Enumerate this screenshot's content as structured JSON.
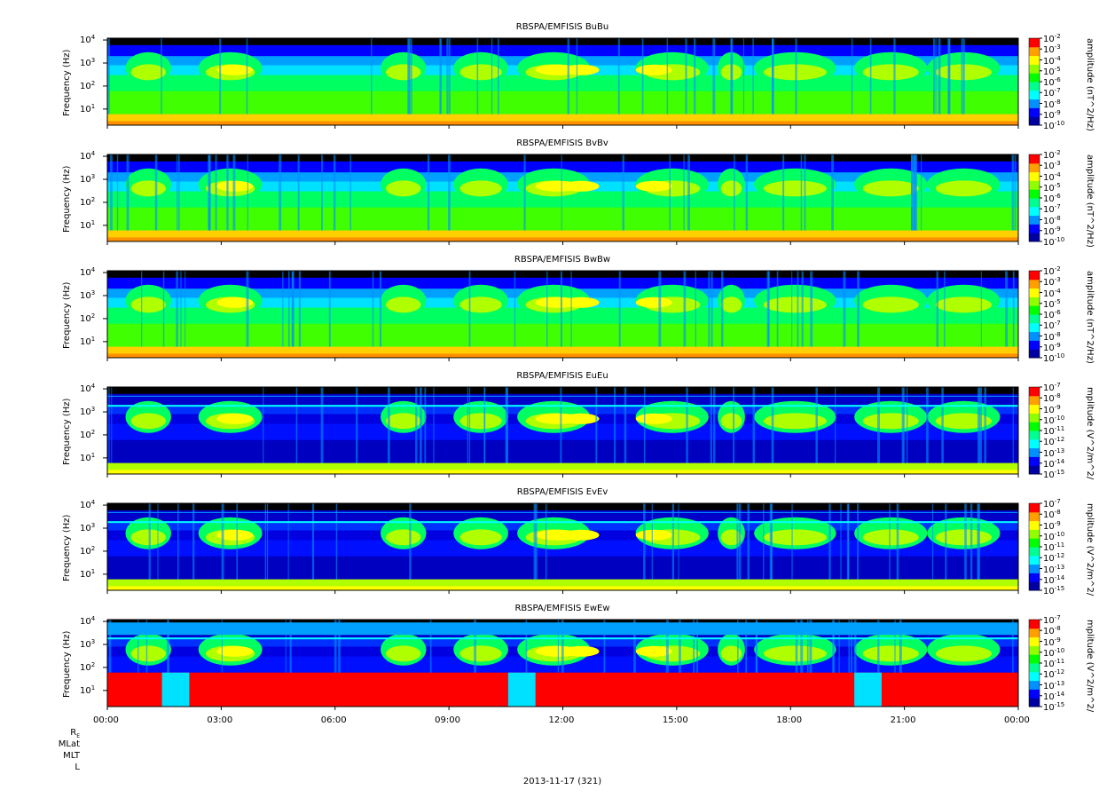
{
  "date_label": "2013-11-17 (321)",
  "row_labels": [
    "R",
    "E",
    "MLat",
    "MLT",
    "L"
  ],
  "x_ticks": [
    "00:00",
    "03:00",
    "06:00",
    "09:00",
    "12:00",
    "15:00",
    "18:00",
    "21:00",
    "00:00"
  ],
  "y_ticks": {
    "base": "10",
    "exps": [
      "1",
      "2",
      "3",
      "4"
    ]
  },
  "colors": {
    "spectrum": [
      "#0000a0",
      "#0000ff",
      "#0090ff",
      "#00ffff",
      "#00ff90",
      "#00ff00",
      "#90ff00",
      "#ffff00",
      "#ffa000",
      "#ff0000"
    ],
    "background_high": "#000000"
  },
  "chart_data": [
    {
      "type": "heatmap",
      "title": "RBSPA/EMFISIS  BuBu",
      "ylabel": "Frequency (Hz)",
      "yscale": "log",
      "ylim": [
        2,
        12000
      ],
      "xlim": [
        "00:00",
        "24:00"
      ],
      "colorbar": {
        "label": "amplitude (nT^2/Hz)",
        "ticks": [
          "-2",
          "-3",
          "-4",
          "-5",
          "-6",
          "-7",
          "-8",
          "-9",
          "-10"
        ],
        "range_exp": [
          -10,
          -2
        ]
      }
    },
    {
      "type": "heatmap",
      "title": "RBSPA/EMFISIS  BvBv",
      "ylabel": "Frequency (Hz)",
      "yscale": "log",
      "ylim": [
        2,
        12000
      ],
      "xlim": [
        "00:00",
        "24:00"
      ],
      "colorbar": {
        "label": "amplitude (nT^2/Hz)",
        "ticks": [
          "-2",
          "-3",
          "-4",
          "-5",
          "-6",
          "-7",
          "-8",
          "-9",
          "-10"
        ],
        "range_exp": [
          -10,
          -2
        ]
      }
    },
    {
      "type": "heatmap",
      "title": "RBSPA/EMFISIS  BwBw",
      "ylabel": "Frequency (Hz)",
      "yscale": "log",
      "ylim": [
        2,
        12000
      ],
      "xlim": [
        "00:00",
        "24:00"
      ],
      "colorbar": {
        "label": "amplitude (nT^2/Hz)",
        "ticks": [
          "-2",
          "-3",
          "-4",
          "-5",
          "-6",
          "-7",
          "-8",
          "-9",
          "-10"
        ],
        "range_exp": [
          -10,
          -2
        ]
      }
    },
    {
      "type": "heatmap",
      "title": "RBSPA/EMFISIS  EuEu",
      "ylabel": "Frequency (Hz)",
      "yscale": "log",
      "ylim": [
        2,
        12000
      ],
      "xlim": [
        "00:00",
        "24:00"
      ],
      "colorbar": {
        "label": "mplitude (V^2/m^2/",
        "ticks": [
          "-7",
          "-8",
          "-9",
          "-10",
          "-11",
          "-12",
          "-13",
          "-14",
          "-15"
        ],
        "range_exp": [
          -15,
          -7
        ]
      }
    },
    {
      "type": "heatmap",
      "title": "RBSPA/EMFISIS  EvEv",
      "ylabel": "Frequency (Hz)",
      "yscale": "log",
      "ylim": [
        2,
        12000
      ],
      "xlim": [
        "00:00",
        "24:00"
      ],
      "colorbar": {
        "label": "mplitude (V^2/m^2/",
        "ticks": [
          "-7",
          "-8",
          "-9",
          "-10",
          "-11",
          "-12",
          "-13",
          "-14",
          "-15"
        ],
        "range_exp": [
          -15,
          -7
        ]
      }
    },
    {
      "type": "heatmap",
      "title": "RBSPA/EMFISIS  EwEw",
      "ylabel": "Frequency (Hz)",
      "yscale": "log",
      "ylim": [
        2,
        12000
      ],
      "xlim": [
        "00:00",
        "24:00"
      ],
      "colorbar": {
        "label": "mplitude (V^2/m^2/",
        "ticks": [
          "-7",
          "-8",
          "-9",
          "-10",
          "-11",
          "-12",
          "-13",
          "-14",
          "-15"
        ],
        "range_exp": [
          -15,
          -7
        ]
      }
    }
  ]
}
